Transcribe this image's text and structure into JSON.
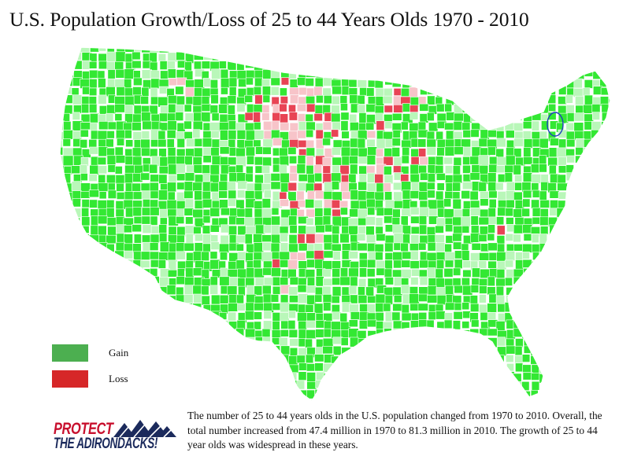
{
  "title": "U.S. Population Growth/Loss of 25 to 44 Years Olds 1970 - 2010",
  "map": {
    "gain_color": "#33e833",
    "light_gain_color": "#b9f7b9",
    "loss_color": "#e84455",
    "light_loss_color": "#f7c4c9",
    "county_border_color": "#ffffff",
    "highlight_outline_color": "#1f3fbf"
  },
  "legend": {
    "items": [
      {
        "label": "Gain",
        "color": "#4caf50"
      },
      {
        "label": "Loss",
        "color": "#d62728"
      }
    ]
  },
  "logo": {
    "line1": "PROTECT",
    "line2": "THE ADIRONDACKS!"
  },
  "caption": "The number of 25 to 44 years olds in the U.S. population changed from 1970 to 2010. Overall, the total number increased from 47.4 million in 1970 to 81.3 million in 2010. The growth of 25 to 44 year olds was widespread in these years."
}
